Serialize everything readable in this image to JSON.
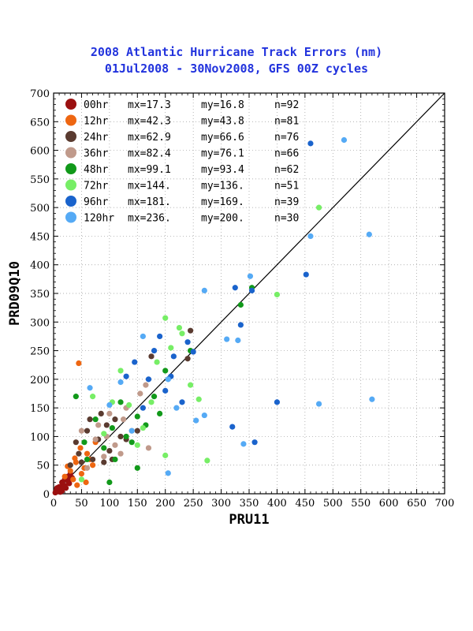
{
  "chart_data": {
    "type": "scatter",
    "title": "2008 Atlantic Hurricane Track Errors (nm)",
    "subtitle": "01Jul2008 - 30Nov2008, GFS 00Z cycles",
    "xlabel": "PRU11",
    "ylabel": "PRD09Q10",
    "xlim": [
      0,
      700
    ],
    "ylim": [
      0,
      700
    ],
    "xticks": [
      0,
      50,
      100,
      150,
      200,
      250,
      300,
      350,
      400,
      450,
      500,
      550,
      600,
      650,
      700
    ],
    "yticks": [
      0,
      50,
      100,
      150,
      200,
      250,
      300,
      350,
      400,
      450,
      500,
      550,
      600,
      650,
      700
    ],
    "grid": true,
    "legend_position": "top-left",
    "diagonal_line": true,
    "series": [
      {
        "name": "00hr",
        "color": "#9b1010",
        "mx": "mx=17.3",
        "my": "my=16.8",
        "n": "n=92",
        "points": [
          [
            3,
            2
          ],
          [
            5,
            6
          ],
          [
            8,
            4
          ],
          [
            10,
            12
          ],
          [
            12,
            8
          ],
          [
            15,
            20
          ],
          [
            18,
            15
          ],
          [
            20,
            25
          ],
          [
            22,
            10
          ],
          [
            25,
            30
          ],
          [
            28,
            18
          ],
          [
            30,
            35
          ],
          [
            12,
            3
          ],
          [
            6,
            10
          ],
          [
            15,
            5
          ],
          [
            20,
            14
          ],
          [
            26,
            22
          ],
          [
            33,
            28
          ],
          [
            9,
            7
          ],
          [
            17,
            11
          ]
        ]
      },
      {
        "name": "12hr",
        "color": "#ee6611",
        "mx": "mx=42.3",
        "my": "my=43.8",
        "n": "n=81",
        "points": [
          [
            45,
            228
          ],
          [
            30,
            40
          ],
          [
            40,
            55
          ],
          [
            55,
            45
          ],
          [
            60,
            70
          ],
          [
            35,
            25
          ],
          [
            50,
            35
          ],
          [
            65,
            60
          ],
          [
            25,
            48
          ],
          [
            70,
            50
          ],
          [
            20,
            30
          ],
          [
            48,
            80
          ],
          [
            75,
            90
          ],
          [
            38,
            62
          ],
          [
            58,
            20
          ],
          [
            42,
            15
          ]
        ]
      },
      {
        "name": "24hr",
        "color": "#5a3b30",
        "mx": "mx=62.9",
        "my": "my=66.6",
        "n": "n=76",
        "points": [
          [
            245,
            285
          ],
          [
            240,
            236
          ],
          [
            175,
            240
          ],
          [
            40,
            90
          ],
          [
            60,
            110
          ],
          [
            80,
            95
          ],
          [
            95,
            120
          ],
          [
            110,
            130
          ],
          [
            70,
            60
          ],
          [
            50,
            55
          ],
          [
            120,
            100
          ],
          [
            85,
            140
          ],
          [
            100,
            75
          ],
          [
            65,
            130
          ],
          [
            130,
            95
          ],
          [
            150,
            110
          ],
          [
            90,
            55
          ],
          [
            45,
            70
          ],
          [
            105,
            60
          ],
          [
            30,
            50
          ]
        ]
      },
      {
        "name": "36hr",
        "color": "#c09a8b",
        "mx": "mx=82.4",
        "my": "my=76.1",
        "n": "n=66",
        "points": [
          [
            155,
            175
          ],
          [
            165,
            190
          ],
          [
            170,
            80
          ],
          [
            130,
            150
          ],
          [
            95,
            100
          ],
          [
            80,
            120
          ],
          [
            110,
            85
          ],
          [
            60,
            45
          ],
          [
            140,
            110
          ],
          [
            120,
            70
          ],
          [
            75,
            95
          ],
          [
            100,
            140
          ],
          [
            50,
            110
          ],
          [
            125,
            130
          ],
          [
            90,
            65
          ]
        ]
      },
      {
        "name": "48hr",
        "color": "#11991a",
        "mx": "mx=99.1",
        "my": "my=93.4",
        "n": "n=62",
        "points": [
          [
            335,
            330
          ],
          [
            355,
            360
          ],
          [
            245,
            250
          ],
          [
            200,
            215
          ],
          [
            180,
            170
          ],
          [
            165,
            120
          ],
          [
            150,
            135
          ],
          [
            130,
            100
          ],
          [
            110,
            60
          ],
          [
            90,
            80
          ],
          [
            100,
            20
          ],
          [
            150,
            45
          ],
          [
            120,
            160
          ],
          [
            75,
            130
          ],
          [
            55,
            90
          ],
          [
            40,
            170
          ],
          [
            140,
            90
          ],
          [
            190,
            140
          ],
          [
            105,
            115
          ],
          [
            60,
            60
          ]
        ]
      },
      {
        "name": "72hr",
        "color": "#77ee66",
        "mx": "mx=144.",
        "my": "my=136.",
        "n": "n=51",
        "points": [
          [
            475,
            500
          ],
          [
            400,
            348
          ],
          [
            275,
            58
          ],
          [
            200,
            67
          ],
          [
            210,
            255
          ],
          [
            225,
            290
          ],
          [
            230,
            280
          ],
          [
            245,
            190
          ],
          [
            260,
            165
          ],
          [
            200,
            307
          ],
          [
            185,
            230
          ],
          [
            160,
            115
          ],
          [
            175,
            160
          ],
          [
            150,
            85
          ],
          [
            120,
            215
          ],
          [
            90,
            105
          ],
          [
            70,
            170
          ],
          [
            50,
            25
          ],
          [
            135,
            155
          ],
          [
            105,
            160
          ]
        ]
      },
      {
        "name": "96hr",
        "color": "#1a63cc",
        "mx": "mx=181.",
        "my": "my=169.",
        "n": "n=39",
        "points": [
          [
            460,
            612
          ],
          [
            452,
            383
          ],
          [
            400,
            160
          ],
          [
            360,
            90
          ],
          [
            355,
            355
          ],
          [
            335,
            295
          ],
          [
            325,
            360
          ],
          [
            320,
            117
          ],
          [
            240,
            265
          ],
          [
            250,
            248
          ],
          [
            230,
            160
          ],
          [
            215,
            240
          ],
          [
            210,
            205
          ],
          [
            200,
            180
          ],
          [
            190,
            275
          ],
          [
            180,
            250
          ],
          [
            170,
            200
          ],
          [
            160,
            150
          ],
          [
            145,
            230
          ],
          [
            130,
            205
          ]
        ]
      },
      {
        "name": "120hr",
        "color": "#55aaf5",
        "mx": "mx=236.",
        "my": "my=200.",
        "n": "n=30",
        "points": [
          [
            520,
            618
          ],
          [
            565,
            453
          ],
          [
            570,
            165
          ],
          [
            475,
            157
          ],
          [
            460,
            450
          ],
          [
            352,
            380
          ],
          [
            340,
            87
          ],
          [
            330,
            268
          ],
          [
            310,
            270
          ],
          [
            270,
            355
          ],
          [
            270,
            137
          ],
          [
            255,
            128
          ],
          [
            220,
            150
          ],
          [
            205,
            36
          ],
          [
            205,
            200
          ],
          [
            160,
            275
          ],
          [
            140,
            110
          ],
          [
            120,
            195
          ],
          [
            100,
            155
          ],
          [
            65,
            185
          ]
        ]
      }
    ]
  }
}
